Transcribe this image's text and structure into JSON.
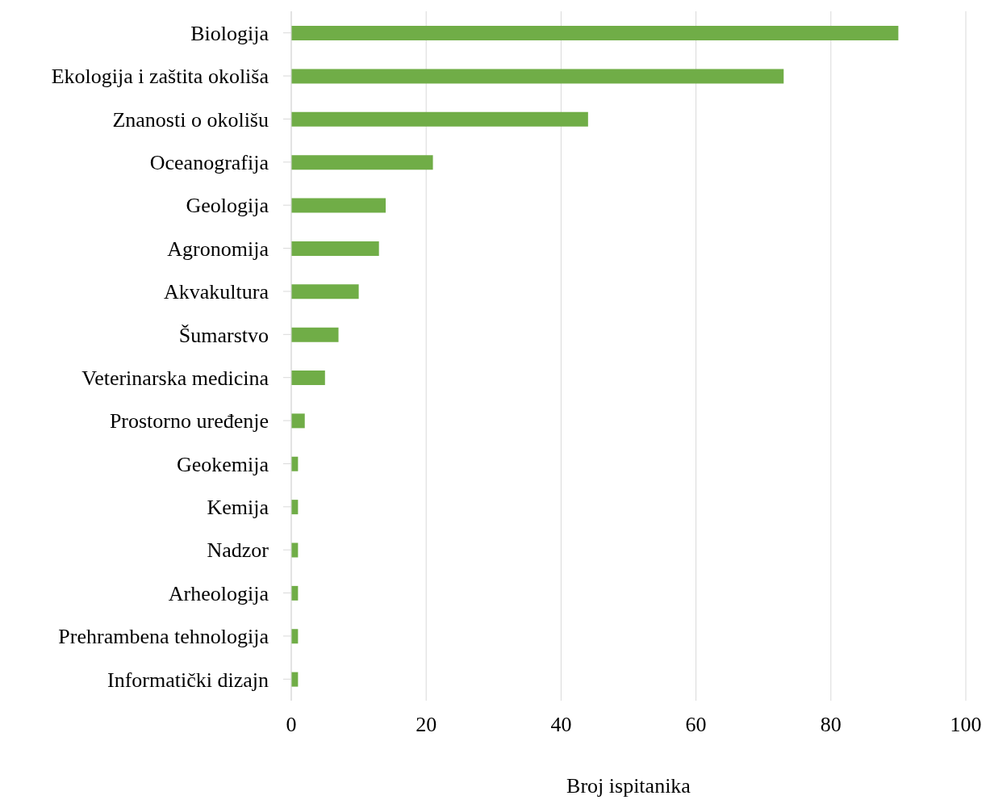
{
  "chart_data": {
    "type": "bar",
    "orientation": "horizontal",
    "xlabel": "Broj ispitanika",
    "categories": [
      "Biologija",
      "Ekologija i zaštita okoliša",
      "Znanosti o okolišu",
      "Oceanografija",
      "Geologija",
      "Agronomija",
      "Akvakultura",
      "Šumarstvo",
      "Veterinarska medicina",
      "Prostorno uređenje",
      "Geokemija",
      "Kemija",
      "Nadzor",
      "Arheologija",
      "Prehrambena tehnologija",
      "Informatički dizajn"
    ],
    "values": [
      90,
      73,
      44,
      21,
      14,
      13,
      10,
      7,
      5,
      2,
      1,
      1,
      1,
      1,
      1,
      1
    ],
    "color": "#70ad47",
    "xlim": [
      0,
      100
    ],
    "xticks": [
      0,
      20,
      40,
      60,
      80,
      100
    ],
    "grid": "x"
  }
}
